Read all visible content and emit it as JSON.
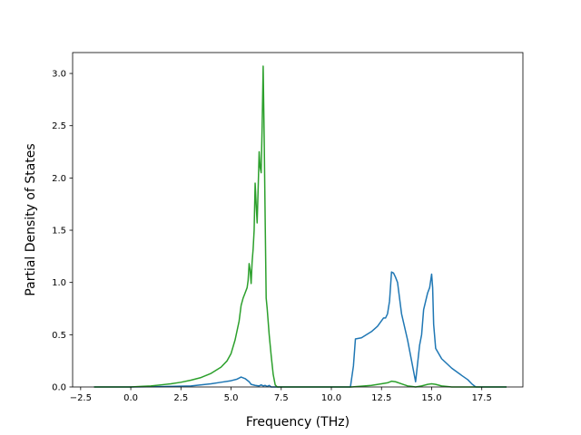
{
  "chart_data": {
    "type": "line",
    "xlabel": "Frequency (THz)",
    "ylabel": "Partial Density of States",
    "xlim": [
      -2.9,
      19.55
    ],
    "ylim": [
      0,
      3.2
    ],
    "xticks": [
      -2.5,
      0.0,
      2.5,
      5.0,
      7.5,
      10.0,
      12.5,
      15.0,
      17.5
    ],
    "xtick_labels": [
      "−2.5",
      "0.0",
      "2.5",
      "5.0",
      "7.5",
      "10.0",
      "12.5",
      "15.0",
      "17.5"
    ],
    "yticks": [
      0.0,
      0.5,
      1.0,
      1.5,
      2.0,
      2.5,
      3.0
    ],
    "ytick_labels": [
      "0.0",
      "0.5",
      "1.0",
      "1.5",
      "2.0",
      "2.5",
      "3.0"
    ],
    "grid": false,
    "legend": "none",
    "series": [
      {
        "color": "#1f77b4",
        "x": [
          -1.8,
          0.0,
          2.0,
          3.0,
          4.0,
          4.5,
          5.0,
          5.3,
          5.5,
          5.7,
          5.9,
          6.0,
          6.2,
          6.4,
          6.5,
          6.6,
          6.7,
          6.8,
          6.9,
          7.0,
          8.0,
          9.0,
          10.0,
          10.95,
          11.1,
          11.2,
          11.5,
          12.0,
          12.3,
          12.6,
          12.7,
          12.8,
          12.9,
          13.0,
          13.1,
          13.2,
          13.3,
          13.5,
          13.8,
          14.0,
          14.2,
          14.4,
          14.5,
          14.6,
          14.7,
          14.8,
          14.9,
          15.0,
          15.05,
          15.1,
          15.2,
          15.5,
          16.0,
          16.5,
          16.8,
          17.0,
          17.2,
          18.0,
          18.7
        ],
        "y": [
          0.0,
          0.0,
          0.005,
          0.01,
          0.03,
          0.045,
          0.06,
          0.075,
          0.095,
          0.08,
          0.05,
          0.025,
          0.015,
          0.01,
          0.02,
          0.01,
          0.015,
          0.005,
          0.015,
          0.0,
          0.0,
          0.0,
          0.0,
          0.0,
          0.2,
          0.46,
          0.47,
          0.53,
          0.58,
          0.66,
          0.66,
          0.7,
          0.82,
          1.1,
          1.09,
          1.05,
          1.0,
          0.7,
          0.45,
          0.25,
          0.05,
          0.4,
          0.5,
          0.74,
          0.82,
          0.9,
          0.95,
          1.08,
          0.95,
          0.6,
          0.37,
          0.27,
          0.18,
          0.11,
          0.07,
          0.03,
          0.0,
          0.0,
          0.0
        ]
      },
      {
        "color": "#2ca02c",
        "x": [
          -1.8,
          0.0,
          0.5,
          1.0,
          1.5,
          2.0,
          2.5,
          3.0,
          3.5,
          4.0,
          4.5,
          4.8,
          5.0,
          5.2,
          5.4,
          5.5,
          5.6,
          5.7,
          5.8,
          5.85,
          5.9,
          5.95,
          6.0,
          6.05,
          6.1,
          6.15,
          6.2,
          6.25,
          6.3,
          6.35,
          6.4,
          6.45,
          6.5,
          6.55,
          6.6,
          6.65,
          6.7,
          6.75,
          6.8,
          6.9,
          7.0,
          7.1,
          7.2,
          7.3,
          7.5,
          8.0,
          9.0,
          10.0,
          11.0,
          12.0,
          12.5,
          12.8,
          13.0,
          13.2,
          13.5,
          13.8,
          14.0,
          14.2,
          14.5,
          14.8,
          15.0,
          15.2,
          15.5,
          16.0,
          17.0,
          18.0,
          18.7
        ],
        "y": [
          0.0,
          0.0,
          0.005,
          0.01,
          0.02,
          0.03,
          0.045,
          0.065,
          0.09,
          0.13,
          0.19,
          0.25,
          0.32,
          0.45,
          0.63,
          0.78,
          0.85,
          0.9,
          0.95,
          1.02,
          1.18,
          1.12,
          0.99,
          1.2,
          1.32,
          1.5,
          1.95,
          1.75,
          1.57,
          1.9,
          2.25,
          2.1,
          2.05,
          2.5,
          3.07,
          2.4,
          1.6,
          0.85,
          0.75,
          0.5,
          0.3,
          0.12,
          0.02,
          0.0,
          0.0,
          0.0,
          0.0,
          0.0,
          0.0,
          0.015,
          0.03,
          0.04,
          0.055,
          0.05,
          0.03,
          0.01,
          0.005,
          0.0,
          0.01,
          0.025,
          0.03,
          0.025,
          0.01,
          0.0,
          0.0,
          0.0,
          0.0
        ]
      }
    ]
  }
}
